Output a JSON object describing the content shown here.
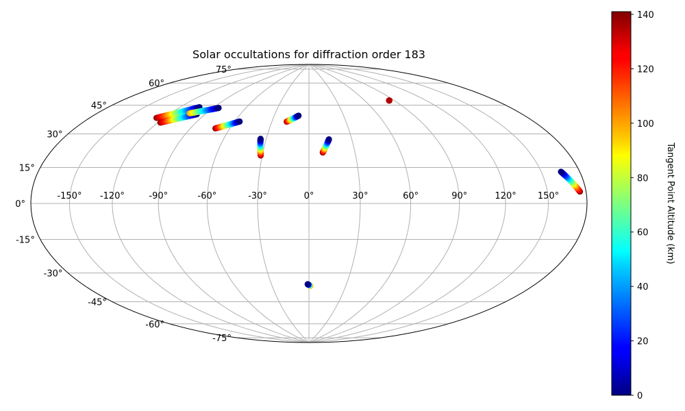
{
  "chart_data": {
    "type": "scatter",
    "projection": "hammer",
    "title": "Solar occultations for diffraction order 183",
    "grid": true,
    "lon_ticks": [
      -150,
      -120,
      -90,
      -60,
      -30,
      0,
      30,
      60,
      90,
      120,
      150
    ],
    "lon_tick_labels": [
      "-150°",
      "-120°",
      "-90°",
      "-60°",
      "-30°",
      "0°",
      "30°",
      "60°",
      "90°",
      "120°",
      "150°"
    ],
    "lat_ticks": [
      -75,
      -60,
      -45,
      -30,
      -15,
      0,
      15,
      30,
      45,
      60,
      75
    ],
    "lat_tick_labels": [
      "-75°",
      "-60°",
      "-45°",
      "-30°",
      "-15°",
      "0°",
      "15°",
      "30°",
      "45°",
      "60°",
      "75°"
    ],
    "colorbar": {
      "label": "Tangent Point Altitude (km)",
      "colormap": "jet",
      "range": [
        0,
        141
      ],
      "ticks": [
        0,
        20,
        40,
        60,
        80,
        100,
        120,
        140
      ],
      "tick_labels": [
        "0",
        "20",
        "40",
        "60",
        "80",
        "100",
        "120",
        "140"
      ]
    },
    "tracks": [
      {
        "start": {
          "lon": -126,
          "lat": 45,
          "alt": 140
        },
        "end": {
          "lon": -103,
          "lat": 54,
          "alt": 0
        }
      },
      {
        "start": {
          "lon": -118,
          "lat": 43,
          "alt": 140
        },
        "end": {
          "lon": -97,
          "lat": 50,
          "alt": 0
        }
      },
      {
        "start": {
          "lon": -104,
          "lat": 50,
          "alt": 100
        },
        "end": {
          "lon": -85,
          "lat": 55,
          "alt": 0
        }
      },
      {
        "start": {
          "lon": -71,
          "lat": 43,
          "alt": 140
        },
        "end": {
          "lon": -56,
          "lat": 48,
          "alt": 0
        }
      },
      {
        "start": {
          "lon": -34,
          "lat": 38,
          "alt": 0
        },
        "end": {
          "lon": -31,
          "lat": 28,
          "alt": 140
        }
      },
      {
        "start": {
          "lon": -18,
          "lat": 49,
          "alt": 140
        },
        "end": {
          "lon": -9,
          "lat": 53,
          "alt": 0
        }
      },
      {
        "start": {
          "lon": 9,
          "lat": 30,
          "alt": 140
        },
        "end": {
          "lon": 14,
          "lat": 38,
          "alt": 0
        }
      },
      {
        "start": {
          "lon": 85,
          "lat": 60,
          "alt": 135
        },
        "end": {
          "lon": 85,
          "lat": 60,
          "alt": 140
        }
      },
      {
        "start": {
          "lon": 165,
          "lat": 14,
          "alt": 0
        },
        "end": {
          "lon": 175,
          "lat": 5,
          "alt": 140
        }
      },
      {
        "start": {
          "lon": -1,
          "lat": -48.5,
          "alt": 0
        },
        "end": {
          "lon": 1,
          "lat": -49.5,
          "alt": 110
        }
      }
    ]
  }
}
